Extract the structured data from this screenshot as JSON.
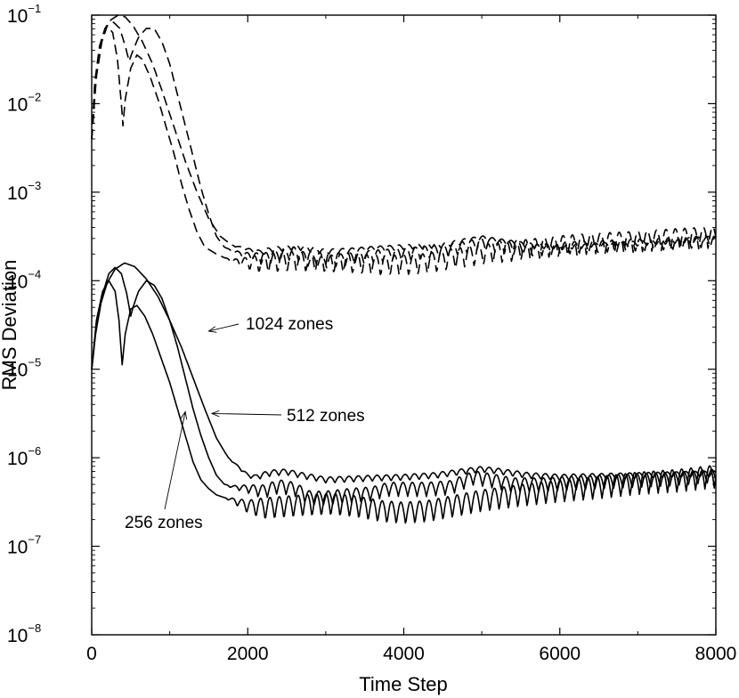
{
  "chart_data": {
    "type": "line",
    "title": "",
    "xlabel": "Time Step",
    "ylabel": "RMS Deviation",
    "xlim": [
      0,
      8000
    ],
    "ylim_log10": [
      -8,
      -1
    ],
    "yscale": "log",
    "x_ticks": [
      {
        "value": 0,
        "label": "0"
      },
      {
        "value": 2000,
        "label": "2000"
      },
      {
        "value": 4000,
        "label": "4000"
      },
      {
        "value": 6000,
        "label": "6000"
      },
      {
        "value": 8000,
        "label": "8000"
      }
    ],
    "y_ticks": [
      {
        "exp": -1,
        "base": "10",
        "sup": "−1"
      },
      {
        "exp": -2,
        "base": "10",
        "sup": "−2"
      },
      {
        "exp": -3,
        "base": "10",
        "sup": "−3"
      },
      {
        "exp": -4,
        "base": "10",
        "sup": "−4"
      },
      {
        "exp": -5,
        "base": "10",
        "sup": "−5"
      },
      {
        "exp": -6,
        "base": "10",
        "sup": "−6"
      },
      {
        "exp": -7,
        "base": "10",
        "sup": "−7"
      },
      {
        "exp": -8,
        "base": "10",
        "sup": "−8"
      }
    ],
    "series": [
      {
        "name": "1024 zones (solid)",
        "style": "solid",
        "osc_amp": 0.035,
        "points": [
          [
            0,
            -5.0
          ],
          [
            50,
            -4.6
          ],
          [
            120,
            -4.25
          ],
          [
            200,
            -4.02
          ],
          [
            300,
            -3.87
          ],
          [
            420,
            -3.8
          ],
          [
            550,
            -3.84
          ],
          [
            700,
            -3.98
          ],
          [
            850,
            -4.18
          ],
          [
            1000,
            -4.45
          ],
          [
            1150,
            -4.75
          ],
          [
            1300,
            -5.1
          ],
          [
            1450,
            -5.45
          ],
          [
            1600,
            -5.78
          ],
          [
            1750,
            -6.0
          ],
          [
            1900,
            -6.12
          ],
          [
            2000,
            -6.2
          ],
          [
            2100,
            -6.22
          ],
          [
            2300,
            -6.17
          ],
          [
            2500,
            -6.16
          ],
          [
            2700,
            -6.2
          ],
          [
            3000,
            -6.25
          ],
          [
            3300,
            -6.24
          ],
          [
            3600,
            -6.23
          ],
          [
            4000,
            -6.22
          ],
          [
            4400,
            -6.2
          ],
          [
            4800,
            -6.15
          ],
          [
            5000,
            -6.13
          ],
          [
            5200,
            -6.15
          ],
          [
            5600,
            -6.2
          ],
          [
            6000,
            -6.22
          ],
          [
            6500,
            -6.21
          ],
          [
            7000,
            -6.2
          ],
          [
            7500,
            -6.19
          ],
          [
            8000,
            -6.18
          ]
        ]
      },
      {
        "name": "512 zones (solid)",
        "style": "solid",
        "osc_amp": 0.08,
        "points": [
          [
            0,
            -5.0
          ],
          [
            60,
            -4.5
          ],
          [
            140,
            -4.15
          ],
          [
            220,
            -3.92
          ],
          [
            300,
            -3.85
          ],
          [
            380,
            -3.92
          ],
          [
            450,
            -4.15
          ],
          [
            500,
            -4.4
          ],
          [
            530,
            -4.3
          ],
          [
            600,
            -4.12
          ],
          [
            700,
            -4.0
          ],
          [
            800,
            -4.05
          ],
          [
            900,
            -4.2
          ],
          [
            1000,
            -4.45
          ],
          [
            1100,
            -4.75
          ],
          [
            1200,
            -5.1
          ],
          [
            1300,
            -5.45
          ],
          [
            1400,
            -5.75
          ],
          [
            1500,
            -6.0
          ],
          [
            1600,
            -6.2
          ],
          [
            1700,
            -6.3
          ],
          [
            1800,
            -6.33
          ],
          [
            2000,
            -6.35
          ],
          [
            2200,
            -6.38
          ],
          [
            2400,
            -6.32
          ],
          [
            2600,
            -6.35
          ],
          [
            2800,
            -6.45
          ],
          [
            3000,
            -6.45
          ],
          [
            3300,
            -6.42
          ],
          [
            3600,
            -6.4
          ],
          [
            3800,
            -6.35
          ],
          [
            4000,
            -6.35
          ],
          [
            4300,
            -6.35
          ],
          [
            4600,
            -6.33
          ],
          [
            4900,
            -6.22
          ],
          [
            5100,
            -6.25
          ],
          [
            5400,
            -6.3
          ],
          [
            5800,
            -6.3
          ],
          [
            6200,
            -6.28
          ],
          [
            6800,
            -6.26
          ],
          [
            7400,
            -6.24
          ],
          [
            8000,
            -6.2
          ]
        ]
      },
      {
        "name": "256 zones (solid)",
        "style": "solid",
        "osc_amp": 0.13,
        "points": [
          [
            0,
            -5.0
          ],
          [
            60,
            -4.45
          ],
          [
            140,
            -4.12
          ],
          [
            220,
            -4.0
          ],
          [
            300,
            -4.12
          ],
          [
            350,
            -4.45
          ],
          [
            390,
            -4.95
          ],
          [
            430,
            -4.6
          ],
          [
            500,
            -4.32
          ],
          [
            580,
            -4.28
          ],
          [
            680,
            -4.4
          ],
          [
            780,
            -4.6
          ],
          [
            900,
            -4.9
          ],
          [
            1000,
            -5.15
          ],
          [
            1100,
            -5.45
          ],
          [
            1200,
            -5.75
          ],
          [
            1300,
            -6.05
          ],
          [
            1400,
            -6.25
          ],
          [
            1500,
            -6.35
          ],
          [
            1600,
            -6.42
          ],
          [
            1800,
            -6.48
          ],
          [
            2000,
            -6.55
          ],
          [
            2200,
            -6.57
          ],
          [
            2500,
            -6.55
          ],
          [
            2800,
            -6.53
          ],
          [
            3100,
            -6.52
          ],
          [
            3400,
            -6.55
          ],
          [
            3700,
            -6.6
          ],
          [
            4000,
            -6.62
          ],
          [
            4300,
            -6.6
          ],
          [
            4600,
            -6.55
          ],
          [
            5000,
            -6.48
          ],
          [
            5500,
            -6.42
          ],
          [
            6000,
            -6.37
          ],
          [
            6500,
            -6.33
          ],
          [
            7000,
            -6.28
          ],
          [
            7500,
            -6.25
          ],
          [
            8000,
            -6.2
          ]
        ]
      },
      {
        "name": "1024 zones (dashed)",
        "style": "dashed",
        "osc_amp": 0.03,
        "points": [
          [
            0,
            -2.4
          ],
          [
            40,
            -1.75
          ],
          [
            100,
            -1.35
          ],
          [
            170,
            -1.15
          ],
          [
            250,
            -1.05
          ],
          [
            340,
            -1.0
          ],
          [
            430,
            -1.02
          ],
          [
            530,
            -1.12
          ],
          [
            650,
            -1.3
          ],
          [
            780,
            -1.55
          ],
          [
            900,
            -1.85
          ],
          [
            1050,
            -2.25
          ],
          [
            1200,
            -2.65
          ],
          [
            1350,
            -3.0
          ],
          [
            1500,
            -3.3
          ],
          [
            1650,
            -3.5
          ],
          [
            1800,
            -3.6
          ],
          [
            2000,
            -3.65
          ],
          [
            2150,
            -3.68
          ],
          [
            2300,
            -3.65
          ],
          [
            2600,
            -3.62
          ],
          [
            2800,
            -3.64
          ],
          [
            3000,
            -3.67
          ],
          [
            3300,
            -3.66
          ],
          [
            3600,
            -3.64
          ],
          [
            4000,
            -3.62
          ],
          [
            4500,
            -3.6
          ],
          [
            4800,
            -3.55
          ],
          [
            5000,
            -3.52
          ],
          [
            5200,
            -3.55
          ],
          [
            5600,
            -3.6
          ],
          [
            6000,
            -3.62
          ],
          [
            6500,
            -3.6
          ],
          [
            7000,
            -3.58
          ],
          [
            7500,
            -3.55
          ],
          [
            8000,
            -3.52
          ]
        ]
      },
      {
        "name": "512 zones (dashed)",
        "style": "dashed",
        "osc_amp": 0.07,
        "points": [
          [
            0,
            -2.4
          ],
          [
            60,
            -1.7
          ],
          [
            130,
            -1.3
          ],
          [
            200,
            -1.12
          ],
          [
            280,
            -1.08
          ],
          [
            360,
            -1.15
          ],
          [
            430,
            -1.35
          ],
          [
            480,
            -1.52
          ],
          [
            520,
            -1.42
          ],
          [
            600,
            -1.25
          ],
          [
            700,
            -1.15
          ],
          [
            800,
            -1.15
          ],
          [
            900,
            -1.3
          ],
          [
            1000,
            -1.55
          ],
          [
            1100,
            -1.9
          ],
          [
            1200,
            -2.25
          ],
          [
            1300,
            -2.6
          ],
          [
            1400,
            -2.95
          ],
          [
            1500,
            -3.25
          ],
          [
            1600,
            -3.5
          ],
          [
            1700,
            -3.62
          ],
          [
            1800,
            -3.67
          ],
          [
            2000,
            -3.72
          ],
          [
            2200,
            -3.75
          ],
          [
            2400,
            -3.72
          ],
          [
            2600,
            -3.68
          ],
          [
            2800,
            -3.78
          ],
          [
            3000,
            -3.78
          ],
          [
            3300,
            -3.75
          ],
          [
            3600,
            -3.72
          ],
          [
            3900,
            -3.7
          ],
          [
            4200,
            -3.68
          ],
          [
            4600,
            -3.65
          ],
          [
            5000,
            -3.58
          ],
          [
            5300,
            -3.62
          ],
          [
            5700,
            -3.65
          ],
          [
            6200,
            -3.62
          ],
          [
            6800,
            -3.6
          ],
          [
            7400,
            -3.58
          ],
          [
            8000,
            -3.55
          ]
        ]
      },
      {
        "name": "256 zones (dashed)",
        "style": "dashed",
        "osc_amp": 0.12,
        "points": [
          [
            0,
            -2.4
          ],
          [
            60,
            -1.65
          ],
          [
            130,
            -1.25
          ],
          [
            200,
            -1.12
          ],
          [
            270,
            -1.2
          ],
          [
            330,
            -1.5
          ],
          [
            380,
            -2.0
          ],
          [
            400,
            -2.25
          ],
          [
            430,
            -1.95
          ],
          [
            500,
            -1.6
          ],
          [
            580,
            -1.45
          ],
          [
            650,
            -1.5
          ],
          [
            750,
            -1.7
          ],
          [
            850,
            -1.95
          ],
          [
            950,
            -2.25
          ],
          [
            1050,
            -2.55
          ],
          [
            1150,
            -2.9
          ],
          [
            1250,
            -3.2
          ],
          [
            1350,
            -3.45
          ],
          [
            1450,
            -3.62
          ],
          [
            1600,
            -3.7
          ],
          [
            1800,
            -3.78
          ],
          [
            2000,
            -3.8
          ],
          [
            2200,
            -3.8
          ],
          [
            2500,
            -3.78
          ],
          [
            2800,
            -3.78
          ],
          [
            3100,
            -3.79
          ],
          [
            3400,
            -3.8
          ],
          [
            3700,
            -3.82
          ],
          [
            4000,
            -3.82
          ],
          [
            4300,
            -3.8
          ],
          [
            4600,
            -3.75
          ],
          [
            5000,
            -3.7
          ],
          [
            5500,
            -3.65
          ],
          [
            6000,
            -3.6
          ],
          [
            6500,
            -3.57
          ],
          [
            7000,
            -3.55
          ],
          [
            7500,
            -3.52
          ],
          [
            8000,
            -3.5
          ]
        ]
      }
    ],
    "annotations": [
      {
        "text": "1024 zones",
        "target": [
          1500,
          -4.57
        ]
      },
      {
        "text": "512 zones",
        "target": [
          1540,
          -5.5
        ]
      },
      {
        "text": "256 zones",
        "target": [
          1200,
          -5.48
        ]
      }
    ]
  }
}
